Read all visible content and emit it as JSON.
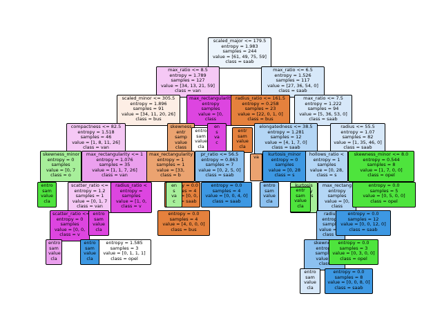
{
  "colors": {
    "saab": "#d7e8f9",
    "saab_light": "#ecf4fc",
    "saab_mid": "#b4d6f5",
    "saab_deep": "#8cc1f0",
    "saab_full": "#3d98e3",
    "van": "#f5c8f5",
    "van_mid": "#eba0ee",
    "van_deep": "#dd45e0",
    "bus": "#fdeee5",
    "bus_mid": "#eba370",
    "bus_full": "#e5813d",
    "opel": "#ffffff",
    "opel_light": "#bdf5b2",
    "opel_mid": "#a7ef9a",
    "opel_full": "#4ee43d"
  },
  "nodes": [
    {
      "id": "n0",
      "color": "saab_light",
      "lines": [
        "scaled_major <= 179.5",
        "entropy = 1.983",
        "samples = 244",
        "value = [61, 49, 75, 59]",
        "class = saab"
      ]
    },
    {
      "id": "n1",
      "color": "van",
      "lines": [
        "max_ratio <= 8.5",
        "entropy = 1.789",
        "samples = 127",
        "value = [34, 13, 21, 59]",
        "class = van"
      ]
    },
    {
      "id": "n2",
      "color": "saab",
      "lines": [
        "max_ratio <= 6.5",
        "entropy = 1.526",
        "samples = 117",
        "value = [27, 36, 54, 0]",
        "class = saab"
      ]
    },
    {
      "id": "n3",
      "color": "bus",
      "lines": [
        "scaled_minor <= 305.5",
        "entropy = 1.896",
        "samples = 91",
        "value = [34, 11, 20, 26]",
        "class = bus"
      ]
    },
    {
      "id": "n4",
      "color": "van_deep",
      "lines": [
        "max_rectangularity",
        "entropy",
        "samples",
        "value = [0,",
        "class"
      ]
    },
    {
      "id": "n5",
      "color": "bus_full",
      "lines": [
        "radius_ratio <= 161.5",
        "entropy = 0.258",
        "samples = 23",
        "value = [22, 0, 1, 0]",
        "class = bus"
      ]
    },
    {
      "id": "n6",
      "color": "saab",
      "lines": [
        "max_ratio <= 7.5",
        "entropy = 1.222",
        "samples = 94",
        "value = [5, 36, 53, 0]",
        "class = saab"
      ]
    },
    {
      "id": "n7",
      "color": "van",
      "lines": [
        "compactness <= 82.5",
        "entropy = 1.518",
        "samples = 46",
        "value = [1, 8, 11, 26]",
        "class = van"
      ]
    },
    {
      "id": "n8",
      "color": "bus_mid",
      "lines": [
        "skewness",
        "entr",
        "samp",
        "value",
        "class"
      ]
    },
    {
      "id": "n9",
      "color": "opel",
      "lines": [
        "entro",
        "sam",
        "value",
        "cla"
      ]
    },
    {
      "id": "n10",
      "color": "van_deep",
      "lines": [
        "en",
        "s",
        "va",
        "c"
      ]
    },
    {
      "id": "n11",
      "color": "bus_full",
      "lines": [
        "entr",
        "sam",
        "value",
        "cla"
      ]
    },
    {
      "id": "n12",
      "color": "saab_mid",
      "lines": [
        "elongatedness <= 38.5",
        "entropy = 1.281",
        "samples = 12",
        "value = [4, 1, 7, 0]",
        "class = saab"
      ]
    },
    {
      "id": "n13",
      "color": "saab",
      "lines": [
        "radius <= 55.5",
        "entropy = 1.07",
        "samples = 82",
        "value = [1, 35, 46, 0]",
        "class = saab"
      ]
    },
    {
      "id": "n14",
      "color": "opel_mid",
      "lines": [
        "skewness_minor",
        "entropy = 0",
        "samples",
        "value = [0, 7",
        "class = o"
      ]
    },
    {
      "id": "n15",
      "color": "van_mid",
      "lines": [
        "max_rectangularity <= 1",
        "entropy = 1.076",
        "samples = 35",
        "value = [1, 1, 7, 26]",
        "class = van"
      ]
    },
    {
      "id": "n16",
      "color": "bus_mid",
      "lines": [
        "max_rectangularity",
        "entropy = 1",
        "samples = 1",
        "value = [33,",
        "class = b"
      ]
    },
    {
      "id": "n17",
      "color": "saab_deep",
      "lines": [
        "pr_ratio <= 56.5",
        "entropy = 0.863",
        "samples = 7",
        "value = [0, 2, 5, 0]",
        "class = saab"
      ]
    },
    {
      "id": "n18",
      "color": "saab_full",
      "lines": [
        "kurtosis_minor",
        "entropy = 0",
        "samples",
        "value = [0, 28",
        "class = s"
      ]
    },
    {
      "id": "n19",
      "color": "saab_mid",
      "lines": [
        "hollows_ratio <",
        "entropy = 1",
        "samples",
        "value = [0, 28,",
        "class = s"
      ]
    },
    {
      "id": "n20",
      "color": "opel_full",
      "lines": [
        "skewness_minor <= 8.0",
        "entropy = 0.544",
        "samples = 8",
        "value = [1, 7, 0, 0]",
        "class = opel"
      ]
    },
    {
      "id": "n21",
      "color": "opel_full",
      "lines": [
        "entro",
        "sam",
        "value",
        "cla"
      ]
    },
    {
      "id": "n22",
      "color": "van",
      "lines": [
        "scatter_ratio <=",
        "entropy = 1.2",
        "samples = 1",
        "value = [0, 1, 7",
        "class = van"
      ]
    },
    {
      "id": "n23",
      "color": "van_deep",
      "lines": [
        "radius_ratio <",
        "entropy =",
        "samples",
        "value = [1, 0,",
        "class = v"
      ]
    },
    {
      "id": "n24",
      "color": "bus_full",
      "lines": [
        "entropy = 0.0",
        "samples = 4",
        "value = [0, 0, 4, 0]",
        "class = saab"
      ]
    },
    {
      "id": "n25",
      "color": "saab_full",
      "lines": [
        "entropy = 0.0",
        "samples = 4",
        "value = [0, 0, 4, 0]",
        "class = saab"
      ]
    },
    {
      "id": "n26",
      "color": "opel_mid",
      "lines": [
        "kurtosis",
        "entropy",
        "samples",
        "value",
        "class"
      ]
    },
    {
      "id": "n27",
      "color": "saab_mid",
      "lines": [
        "max_rectang",
        "entropy",
        "samples",
        "value = [0,",
        "class"
      ]
    },
    {
      "id": "n28",
      "color": "opel_full",
      "lines": [
        "entropy = 0.0",
        "samples = 5",
        "value = [0, 5, 0, 0]",
        "class = opel"
      ]
    },
    {
      "id": "n29",
      "color": "van_deep",
      "lines": [
        "scatter_ratio <=",
        "entropy = 0",
        "samples",
        "value = [0, 0,",
        "class = v"
      ]
    },
    {
      "id": "n30",
      "color": "bus_full",
      "lines": [
        "entropy = 0.0",
        "samples = 4",
        "value = [4, 0, 0, 0]",
        "class = bus"
      ]
    },
    {
      "id": "n31",
      "color": "saab_deep",
      "lines": [
        "radius",
        "entropy",
        "sample",
        "value = [0,",
        "class ="
      ]
    },
    {
      "id": "n32",
      "color": "saab_full",
      "lines": [
        "entropy = 0.0",
        "samples = 12",
        "value = [0, 0, 12, 0]",
        "class = saab"
      ]
    },
    {
      "id": "n33",
      "color": "van_mid",
      "lines": [
        "entro",
        "sam",
        "value",
        "cla"
      ]
    },
    {
      "id": "n34",
      "color": "opel",
      "lines": [
        "entropy = 1.585",
        "samples = 3",
        "value = [0, 1, 1, 1]",
        "class = opel"
      ]
    },
    {
      "id": "n35",
      "color": "saab_deep",
      "lines": [
        "skewness",
        "entropy",
        "samples",
        "value =",
        "class"
      ]
    },
    {
      "id": "n36",
      "color": "opel_full",
      "lines": [
        "entropy = 0.0",
        "samples = 3",
        "value = [0, 3, 0, 0]",
        "class = opel"
      ]
    },
    {
      "id": "n37",
      "color": "saab_full",
      "lines": [
        "entropy = 0.0",
        "samples = 8",
        "value = [0, 0, 8, 0]",
        "class = saab"
      ]
    },
    {
      "id": "n38",
      "color": "saab",
      "lines": [
        "entro",
        "sam",
        "value",
        "cla"
      ]
    },
    {
      "id": "n39",
      "color": "opel_mid",
      "lines": [
        "en",
        "s",
        "va",
        "c"
      ]
    },
    {
      "id": "n40",
      "color": "bus_mid",
      "lines": [
        "",
        "va",
        ""
      ]
    },
    {
      "id": "n41",
      "color": "opel_full",
      "lines": [
        "entr",
        "sam",
        "value",
        "cla"
      ]
    },
    {
      "id": "n42",
      "color": "van_deep",
      "lines": [
        "entro",
        "sam",
        "value",
        "cla"
      ]
    },
    {
      "id": "n43",
      "color": "saab_full",
      "lines": [
        "entro",
        "sam",
        "value",
        "cla"
      ]
    },
    {
      "id": "n44",
      "color": "saab_deep",
      "lines": [
        "entro",
        "sam",
        "value",
        "cla"
      ]
    }
  ]
}
